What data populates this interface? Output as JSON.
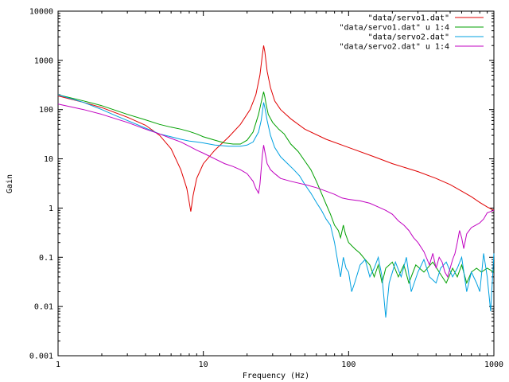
{
  "chart_data": {
    "type": "line",
    "title": "",
    "xlabel": "Frequency (Hz)",
    "ylabel": "Gain",
    "xscale": "log",
    "yscale": "log",
    "xlim": [
      1,
      1000
    ],
    "ylim": [
      0.001,
      10000
    ],
    "x_ticks": [
      1,
      10,
      100,
      1000
    ],
    "x_tick_labels": [
      "1",
      "10",
      "100",
      "1000"
    ],
    "y_ticks": [
      0.001,
      0.01,
      0.1,
      1,
      10,
      100,
      1000,
      10000
    ],
    "y_tick_labels": [
      "0.001",
      "0.01",
      "0.1",
      "1",
      "10",
      "100",
      "1000",
      "10000"
    ],
    "grid": false,
    "legend_position": "top-right",
    "series": [
      {
        "name": "\"data/servo1.dat\"",
        "color": "#e00000",
        "points": [
          [
            1,
            190
          ],
          [
            1.5,
            140
          ],
          [
            2,
            110
          ],
          [
            3,
            70
          ],
          [
            4,
            48
          ],
          [
            5,
            30
          ],
          [
            6,
            16
          ],
          [
            7,
            6
          ],
          [
            7.7,
            2.5
          ],
          [
            8,
            1.3
          ],
          [
            8.2,
            0.85
          ],
          [
            8.5,
            1.8
          ],
          [
            9,
            4
          ],
          [
            10,
            8
          ],
          [
            12,
            15
          ],
          [
            15,
            28
          ],
          [
            18,
            50
          ],
          [
            21,
            100
          ],
          [
            23,
            200
          ],
          [
            24.5,
            500
          ],
          [
            25.5,
            1300
          ],
          [
            26,
            2000
          ],
          [
            26.5,
            1500
          ],
          [
            27.5,
            600
          ],
          [
            29,
            280
          ],
          [
            31,
            150
          ],
          [
            34,
            100
          ],
          [
            40,
            65
          ],
          [
            50,
            40
          ],
          [
            70,
            25
          ],
          [
            100,
            17
          ],
          [
            150,
            11
          ],
          [
            200,
            8
          ],
          [
            300,
            5.5
          ],
          [
            400,
            4
          ],
          [
            500,
            3
          ],
          [
            600,
            2.2
          ],
          [
            700,
            1.7
          ],
          [
            800,
            1.3
          ],
          [
            900,
            1.05
          ],
          [
            1000,
            0.9
          ]
        ]
      },
      {
        "name": "\"data/servo1.dat\" u 1:4",
        "color": "#00a000",
        "points": [
          [
            1,
            200
          ],
          [
            1.5,
            150
          ],
          [
            2,
            120
          ],
          [
            3,
            80
          ],
          [
            4,
            62
          ],
          [
            5,
            50
          ],
          [
            6,
            44
          ],
          [
            7,
            40
          ],
          [
            8,
            36
          ],
          [
            9,
            32
          ],
          [
            10,
            28
          ],
          [
            12,
            24
          ],
          [
            14,
            21
          ],
          [
            16,
            20
          ],
          [
            18,
            20
          ],
          [
            20,
            24
          ],
          [
            22,
            35
          ],
          [
            24,
            80
          ],
          [
            25,
            140
          ],
          [
            26,
            230
          ],
          [
            26.5,
            180
          ],
          [
            27,
            130
          ],
          [
            28,
            80
          ],
          [
            30,
            55
          ],
          [
            33,
            40
          ],
          [
            36,
            32
          ],
          [
            40,
            20
          ],
          [
            45,
            14
          ],
          [
            50,
            9
          ],
          [
            55,
            6
          ],
          [
            60,
            3.5
          ],
          [
            65,
            2
          ],
          [
            70,
            1.2
          ],
          [
            75,
            0.75
          ],
          [
            80,
            0.45
          ],
          [
            85,
            0.35
          ],
          [
            88,
            0.25
          ],
          [
            92,
            0.45
          ],
          [
            95,
            0.3
          ],
          [
            100,
            0.2
          ],
          [
            110,
            0.15
          ],
          [
            120,
            0.12
          ],
          [
            130,
            0.09
          ],
          [
            140,
            0.07
          ],
          [
            150,
            0.04
          ],
          [
            160,
            0.07
          ],
          [
            170,
            0.03
          ],
          [
            180,
            0.06
          ],
          [
            200,
            0.08
          ],
          [
            220,
            0.04
          ],
          [
            240,
            0.07
          ],
          [
            260,
            0.03
          ],
          [
            290,
            0.07
          ],
          [
            330,
            0.05
          ],
          [
            380,
            0.08
          ],
          [
            420,
            0.05
          ],
          [
            470,
            0.03
          ],
          [
            520,
            0.06
          ],
          [
            560,
            0.04
          ],
          [
            600,
            0.07
          ],
          [
            650,
            0.03
          ],
          [
            700,
            0.05
          ],
          [
            760,
            0.06
          ],
          [
            820,
            0.05
          ],
          [
            900,
            0.06
          ],
          [
            1000,
            0.05
          ]
        ]
      },
      {
        "name": "\"data/servo2.dat\"",
        "color": "#00a0e0",
        "points": [
          [
            1,
            200
          ],
          [
            1.5,
            140
          ],
          [
            2,
            100
          ],
          [
            2.5,
            75
          ],
          [
            3,
            60
          ],
          [
            4,
            42
          ],
          [
            5,
            32
          ],
          [
            6,
            28
          ],
          [
            7,
            25
          ],
          [
            8,
            23
          ],
          [
            9,
            22
          ],
          [
            10,
            21
          ],
          [
            12,
            19
          ],
          [
            15,
            18
          ],
          [
            18,
            18
          ],
          [
            20,
            19
          ],
          [
            22,
            22
          ],
          [
            24,
            35
          ],
          [
            25,
            60
          ],
          [
            26,
            140
          ],
          [
            26.5,
            110
          ],
          [
            27.5,
            60
          ],
          [
            29,
            30
          ],
          [
            31,
            17
          ],
          [
            34,
            11
          ],
          [
            38,
            8
          ],
          [
            42,
            6
          ],
          [
            46,
            4.5
          ],
          [
            50,
            3
          ],
          [
            55,
            2
          ],
          [
            60,
            1.3
          ],
          [
            65,
            0.9
          ],
          [
            70,
            0.6
          ],
          [
            75,
            0.45
          ],
          [
            80,
            0.2
          ],
          [
            85,
            0.07
          ],
          [
            88,
            0.04
          ],
          [
            92,
            0.1
          ],
          [
            96,
            0.06
          ],
          [
            100,
            0.05
          ],
          [
            105,
            0.02
          ],
          [
            110,
            0.03
          ],
          [
            120,
            0.07
          ],
          [
            130,
            0.09
          ],
          [
            140,
            0.04
          ],
          [
            150,
            0.06
          ],
          [
            160,
            0.1
          ],
          [
            170,
            0.04
          ],
          [
            180,
            0.006
          ],
          [
            190,
            0.03
          ],
          [
            210,
            0.08
          ],
          [
            230,
            0.04
          ],
          [
            250,
            0.1
          ],
          [
            270,
            0.02
          ],
          [
            300,
            0.05
          ],
          [
            330,
            0.09
          ],
          [
            360,
            0.04
          ],
          [
            400,
            0.03
          ],
          [
            430,
            0.06
          ],
          [
            470,
            0.08
          ],
          [
            520,
            0.04
          ],
          [
            560,
            0.06
          ],
          [
            600,
            0.1
          ],
          [
            650,
            0.02
          ],
          [
            700,
            0.05
          ],
          [
            760,
            0.03
          ],
          [
            800,
            0.02
          ],
          [
            850,
            0.12
          ],
          [
            900,
            0.04
          ],
          [
            950,
            0.008
          ],
          [
            1000,
            0.12
          ]
        ]
      },
      {
        "name": "\"data/servo2.dat\" u 1:4",
        "color": "#c000c0",
        "points": [
          [
            1,
            130
          ],
          [
            1.5,
            100
          ],
          [
            2,
            80
          ],
          [
            2.5,
            65
          ],
          [
            3,
            55
          ],
          [
            4,
            40
          ],
          [
            5,
            32
          ],
          [
            6,
            26
          ],
          [
            7,
            22
          ],
          [
            8,
            18
          ],
          [
            9,
            15
          ],
          [
            10,
            13
          ],
          [
            12,
            10
          ],
          [
            14,
            8
          ],
          [
            16,
            7
          ],
          [
            18,
            6
          ],
          [
            20,
            5
          ],
          [
            22,
            3.5
          ],
          [
            23,
            2.5
          ],
          [
            24,
            2
          ],
          [
            24.5,
            3
          ],
          [
            25.5,
            12
          ],
          [
            26,
            19
          ],
          [
            26.5,
            14
          ],
          [
            27.5,
            8
          ],
          [
            29,
            6
          ],
          [
            31,
            5
          ],
          [
            34,
            4
          ],
          [
            40,
            3.5
          ],
          [
            50,
            3
          ],
          [
            60,
            2.6
          ],
          [
            70,
            2.2
          ],
          [
            80,
            1.9
          ],
          [
            90,
            1.6
          ],
          [
            100,
            1.5
          ],
          [
            120,
            1.4
          ],
          [
            140,
            1.25
          ],
          [
            160,
            1.05
          ],
          [
            180,
            0.9
          ],
          [
            200,
            0.75
          ],
          [
            220,
            0.55
          ],
          [
            240,
            0.45
          ],
          [
            260,
            0.35
          ],
          [
            280,
            0.25
          ],
          [
            300,
            0.2
          ],
          [
            330,
            0.13
          ],
          [
            360,
            0.07
          ],
          [
            380,
            0.12
          ],
          [
            400,
            0.06
          ],
          [
            420,
            0.1
          ],
          [
            440,
            0.08
          ],
          [
            460,
            0.05
          ],
          [
            480,
            0.04
          ],
          [
            500,
            0.06
          ],
          [
            520,
            0.09
          ],
          [
            540,
            0.12
          ],
          [
            560,
            0.2
          ],
          [
            580,
            0.35
          ],
          [
            600,
            0.25
          ],
          [
            620,
            0.15
          ],
          [
            650,
            0.3
          ],
          [
            700,
            0.4
          ],
          [
            750,
            0.45
          ],
          [
            800,
            0.5
          ],
          [
            850,
            0.6
          ],
          [
            900,
            0.8
          ],
          [
            950,
            0.85
          ],
          [
            1000,
            0.9
          ]
        ]
      }
    ]
  }
}
